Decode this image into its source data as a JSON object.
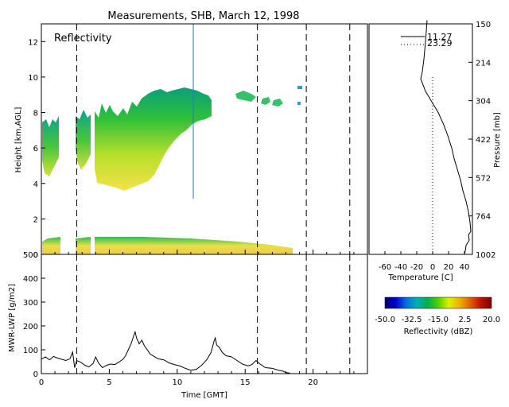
{
  "figure": {
    "title": "Measurements, SHB, March 12, 1998"
  },
  "chart_data": [
    {
      "type": "heatmap",
      "panel": "reflectivity",
      "annotation": "Reflectivity",
      "xlabel": "",
      "ylabel": "Height [km,AGL]",
      "xlim": [
        0,
        24
      ],
      "ylim": [
        0,
        13
      ],
      "yticks": [
        "0",
        "2",
        "4",
        "6",
        "8",
        "10",
        "12"
      ],
      "colorbar": {
        "label": "Reflectivity (dBZ)",
        "range": [
          -50,
          20
        ],
        "ticks": [
          "-50.0",
          "-32.5",
          "-15.0",
          "2.5",
          "20.0"
        ]
      },
      "vertical_dashed_lines_hours": [
        2.6,
        15.9,
        19.5,
        22.7
      ],
      "echo_regions": [
        {
          "name": "",
          "x_hours": [
            0.2,
            1.3
          ],
          "height_km": [
            4.4,
            8.4
          ]
        },
        {
          "name": "",
          "x_hours": [
            2.7,
            3.7
          ],
          "height_km": [
            4.8,
            8.4
          ]
        },
        {
          "name": "",
          "x_hours": [
            4.0,
            12.6
          ],
          "height_km": [
            3.6,
            9.3
          ]
        },
        {
          "name": "",
          "x_hours": [
            14.4,
            18.7
          ],
          "height_km": [
            8.8,
            9.4
          ]
        },
        {
          "name": "",
          "x_hours": [
            0.2,
            18.5
          ],
          "height_km": [
            0.0,
            1.2
          ]
        }
      ]
    },
    {
      "type": "line",
      "panel": "sounding",
      "xlabel": "Temperature [C]",
      "ylabel": "Pressure [mb]",
      "xlim": [
        -80,
        50
      ],
      "xticks": [
        "-60",
        "-40",
        "-20",
        "0",
        "20",
        "40"
      ],
      "pressure_ticks": [
        "150",
        "214",
        "304",
        "422",
        "572",
        "764",
        "1002"
      ],
      "series": [
        {
          "name": "11.27",
          "style": "solid",
          "points": [
            [
              -7,
              13.2
            ],
            [
              -9,
              12.0
            ],
            [
              -11,
              11.0
            ],
            [
              -13,
              10.3
            ],
            [
              -15,
              9.9
            ],
            [
              -9,
              9.2
            ],
            [
              -1,
              8.6
            ],
            [
              7,
              8.0
            ],
            [
              14,
              7.3
            ],
            [
              19,
              6.7
            ],
            [
              24,
              6.0
            ],
            [
              27,
              5.4
            ],
            [
              31,
              4.8
            ],
            [
              35,
              4.2
            ],
            [
              38,
              3.6
            ],
            [
              42,
              3.0
            ],
            [
              45,
              2.4
            ],
            [
              47,
              1.8
            ],
            [
              48,
              1.3
            ],
            [
              45,
              1.1
            ],
            [
              46,
              0.8
            ],
            [
              42,
              0.5
            ],
            [
              41,
              0.2
            ],
            [
              40,
              0.0
            ]
          ]
        },
        {
          "name": "23.29",
          "style": "dotted",
          "points": [
            [
              0,
              10.0
            ],
            [
              0,
              0.0
            ]
          ]
        }
      ]
    },
    {
      "type": "line",
      "panel": "lwp",
      "xlabel": "Time [GMT]",
      "ylabel": "MWR-LWP [g/m2]",
      "xlim": [
        0,
        24
      ],
      "ylim": [
        0,
        500
      ],
      "xticks": [
        "0",
        "5",
        "10",
        "15",
        "20"
      ],
      "yticks": [
        "0",
        "100",
        "200",
        "300",
        "400",
        "500"
      ],
      "vertical_dashed_lines_hours": [
        2.6,
        15.9,
        19.5,
        22.7
      ],
      "series": [
        {
          "name": "",
          "points": [
            [
              0.0,
              60
            ],
            [
              0.3,
              70
            ],
            [
              0.6,
              58
            ],
            [
              0.9,
              72
            ],
            [
              1.2,
              65
            ],
            [
              1.5,
              60
            ],
            [
              1.8,
              55
            ],
            [
              2.1,
              62
            ],
            [
              2.3,
              90
            ],
            [
              2.45,
              25
            ],
            [
              2.6,
              55
            ],
            [
              2.9,
              48
            ],
            [
              3.2,
              35
            ],
            [
              3.5,
              28
            ],
            [
              3.8,
              42
            ],
            [
              4.0,
              70
            ],
            [
              4.2,
              45
            ],
            [
              4.5,
              25
            ],
            [
              4.8,
              35
            ],
            [
              5.1,
              40
            ],
            [
              5.4,
              38
            ],
            [
              5.7,
              48
            ],
            [
              6.0,
              60
            ],
            [
              6.2,
              75
            ],
            [
              6.4,
              100
            ],
            [
              6.6,
              125
            ],
            [
              6.8,
              160
            ],
            [
              6.9,
              175
            ],
            [
              7.0,
              150
            ],
            [
              7.2,
              125
            ],
            [
              7.4,
              140
            ],
            [
              7.6,
              115
            ],
            [
              7.8,
              100
            ],
            [
              8.0,
              82
            ],
            [
              8.3,
              72
            ],
            [
              8.6,
              62
            ],
            [
              9.0,
              58
            ],
            [
              9.4,
              45
            ],
            [
              9.8,
              38
            ],
            [
              10.2,
              32
            ],
            [
              10.6,
              22
            ],
            [
              11.0,
              14
            ],
            [
              11.4,
              18
            ],
            [
              11.8,
              35
            ],
            [
              12.2,
              60
            ],
            [
              12.5,
              90
            ],
            [
              12.7,
              135
            ],
            [
              12.8,
              150
            ],
            [
              12.9,
              120
            ],
            [
              13.1,
              110
            ],
            [
              13.3,
              90
            ],
            [
              13.6,
              75
            ],
            [
              14.0,
              70
            ],
            [
              14.4,
              55
            ],
            [
              14.8,
              40
            ],
            [
              15.2,
              32
            ],
            [
              15.5,
              38
            ],
            [
              15.8,
              55
            ],
            [
              16.1,
              40
            ],
            [
              16.5,
              25
            ],
            [
              17.0,
              22
            ],
            [
              17.4,
              15
            ],
            [
              17.8,
              10
            ],
            [
              18.0,
              4
            ],
            [
              18.3,
              2
            ]
          ]
        }
      ]
    }
  ]
}
